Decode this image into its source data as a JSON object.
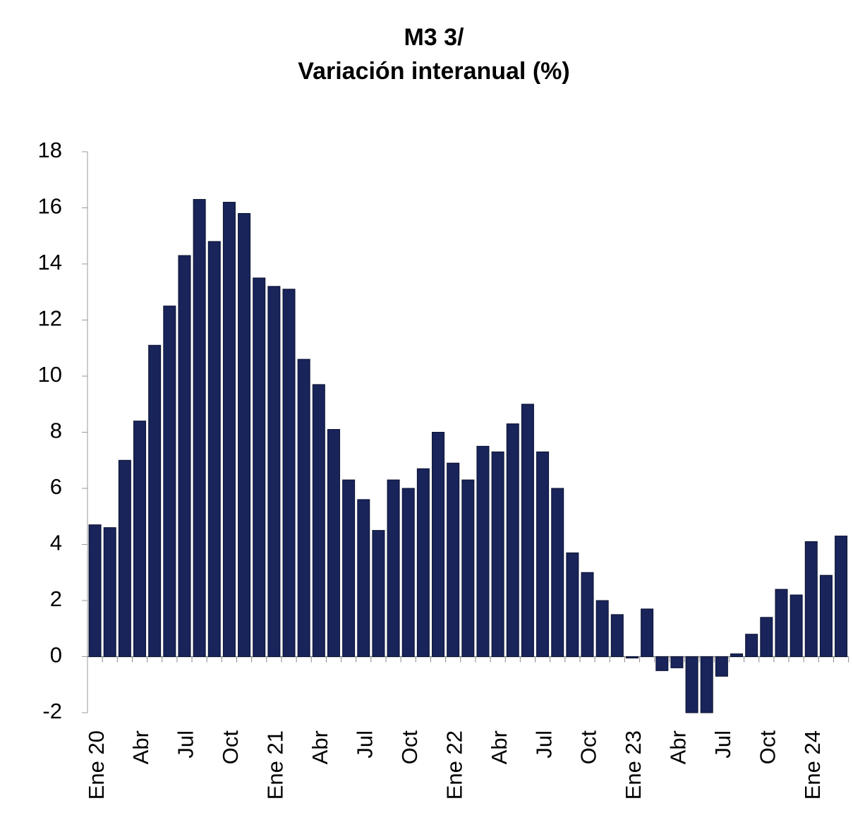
{
  "chart_data": {
    "type": "bar",
    "title": [
      "M3 3/",
      "Variación interanual (%)"
    ],
    "categories": [
      "Ene 20",
      null,
      null,
      "Abr",
      null,
      null,
      "Jul",
      null,
      null,
      "Oct",
      null,
      null,
      "Ene 21",
      null,
      null,
      "Abr",
      null,
      null,
      "Jul",
      null,
      null,
      "Oct",
      null,
      null,
      "Ene 22",
      null,
      null,
      "Abr",
      null,
      null,
      "Jul",
      null,
      null,
      "Oct",
      null,
      null,
      "Ene 23",
      null,
      null,
      "Abr",
      null,
      null,
      "Jul",
      null,
      null,
      "Oct",
      null,
      null,
      "Ene 24",
      null,
      null
    ],
    "values": [
      4.7,
      4.6,
      7.0,
      8.4,
      11.1,
      12.5,
      14.3,
      16.3,
      14.8,
      16.2,
      15.8,
      13.5,
      13.2,
      13.1,
      10.6,
      9.7,
      8.1,
      6.3,
      5.6,
      4.5,
      6.3,
      6.0,
      6.7,
      8.0,
      6.9,
      6.3,
      7.5,
      7.3,
      8.3,
      9.0,
      7.3,
      6.0,
      3.7,
      3.0,
      2.0,
      1.5,
      -0.05,
      1.7,
      -0.5,
      -0.4,
      -2.0,
      -2.0,
      -0.7,
      0.1,
      0.8,
      1.4,
      2.4,
      2.2,
      4.1,
      2.9,
      4.3
    ],
    "color": "#18245a",
    "ylim": [
      -2,
      18
    ],
    "yticks": [
      -2,
      0,
      2,
      4,
      6,
      8,
      10,
      12,
      14,
      16,
      18
    ],
    "grid": false
  }
}
